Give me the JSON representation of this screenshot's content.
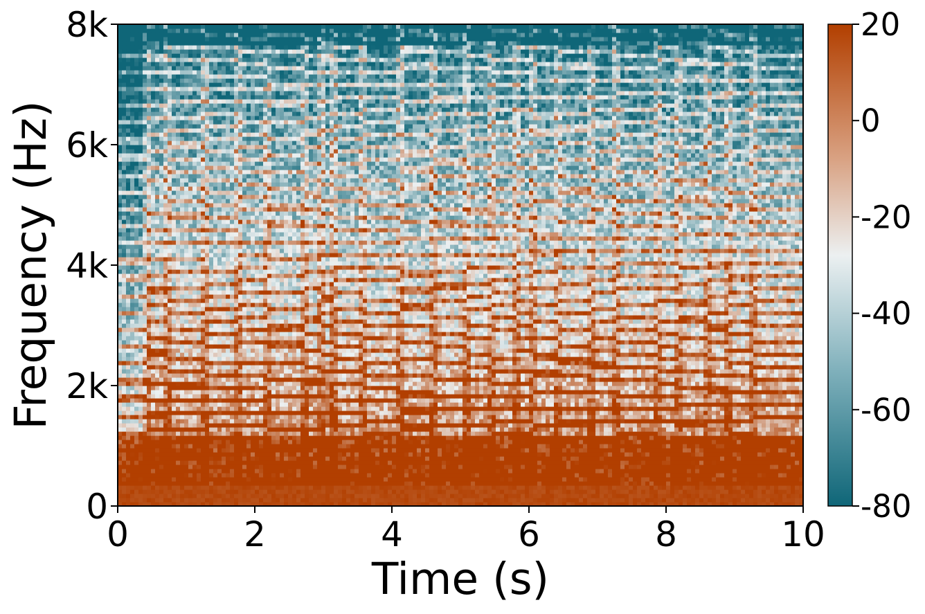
{
  "chart_data": {
    "type": "heatmap",
    "subtype": "spectrogram",
    "title": "",
    "xlabel": "Time (s)",
    "ylabel": "Frequency (Hz)",
    "xlim": [
      0,
      10
    ],
    "ylim": [
      0,
      8000
    ],
    "x_ticks": [
      {
        "value": 0,
        "label": "0"
      },
      {
        "value": 2,
        "label": "2"
      },
      {
        "value": 4,
        "label": "4"
      },
      {
        "value": 6,
        "label": "6"
      },
      {
        "value": 8,
        "label": "8"
      },
      {
        "value": 10,
        "label": "10"
      }
    ],
    "y_ticks": [
      {
        "value": 0,
        "label": "0"
      },
      {
        "value": 2000,
        "label": "2k"
      },
      {
        "value": 4000,
        "label": "4k"
      },
      {
        "value": 6000,
        "label": "6k"
      },
      {
        "value": 8000,
        "label": "8k"
      }
    ],
    "colorbar": {
      "range": [
        -80,
        20
      ],
      "ticks": [
        {
          "value": 20,
          "label": "20"
        },
        {
          "value": 0,
          "label": "0"
        },
        {
          "value": -20,
          "label": "-20"
        },
        {
          "value": -40,
          "label": "-40"
        },
        {
          "value": -60,
          "label": "-60"
        },
        {
          "value": -80,
          "label": "-80"
        }
      ],
      "colormap": [
        "#0f6678",
        "#ecf0f1",
        "#b23f00"
      ]
    },
    "note_onsets_s": [
      0.4,
      0.75,
      1.3,
      1.75,
      2.2,
      2.7,
      2.95,
      3.15,
      3.6,
      4.1,
      4.6,
      5.1,
      5.45,
      5.8,
      6.05,
      6.4,
      6.9,
      7.3,
      7.9,
      8.2,
      8.6,
      8.9,
      9.3
    ]
  },
  "colors": {
    "low": "#0f6678",
    "mid": "#ecf0f1",
    "high": "#b23f00"
  }
}
